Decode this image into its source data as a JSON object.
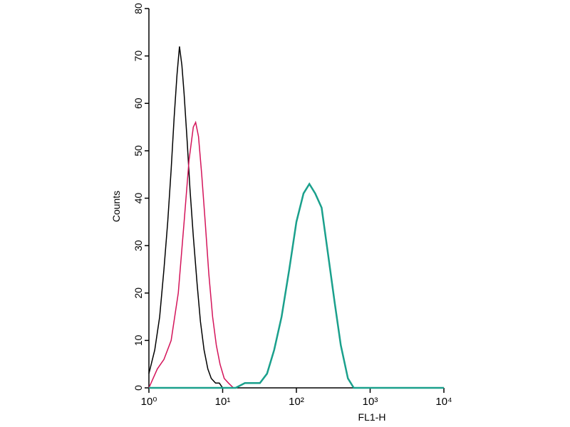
{
  "chart_data": {
    "type": "line",
    "xlabel": "FL1-H",
    "ylabel": "Counts",
    "xscale": "log",
    "xlim": [
      1,
      10000
    ],
    "ylim": [
      0,
      80
    ],
    "xticks": [
      {
        "value": 1,
        "label": "10⁰"
      },
      {
        "value": 10,
        "label": "10¹"
      },
      {
        "value": 100,
        "label": "10²"
      },
      {
        "value": 1000,
        "label": "10³"
      },
      {
        "value": 10000,
        "label": "10⁴"
      }
    ],
    "yticks": [
      0,
      10,
      20,
      30,
      40,
      50,
      60,
      70,
      80
    ],
    "series": [
      {
        "color": "#000000",
        "x": [
          1,
          1.2,
          1.4,
          1.6,
          1.8,
          2.0,
          2.2,
          2.4,
          2.6,
          2.8,
          3.0,
          3.3,
          3.6,
          4.0,
          4.5,
          5,
          5.6,
          6.3,
          7,
          8,
          9,
          10,
          12
        ],
        "values": [
          3,
          8,
          15,
          25,
          35,
          46,
          57,
          66,
          72,
          68,
          62,
          52,
          42,
          32,
          22,
          14,
          8,
          4,
          2,
          1,
          1,
          0,
          0
        ]
      },
      {
        "color": "#d4145a",
        "x": [
          1,
          1.3,
          1.6,
          2,
          2.5,
          3,
          3.5,
          4,
          4.3,
          4.7,
          5.2,
          5.8,
          6.5,
          7.3,
          8.2,
          9.2,
          10.5,
          12,
          14
        ],
        "values": [
          0,
          4,
          6,
          10,
          20,
          35,
          48,
          55,
          56,
          53,
          45,
          35,
          24,
          15,
          9,
          5,
          2,
          1,
          0
        ]
      },
      {
        "color": "#1aa08c",
        "x": [
          1,
          10,
          15,
          20,
          25,
          32,
          40,
          50,
          63,
          80,
          100,
          125,
          150,
          180,
          220,
          270,
          330,
          400,
          500,
          600,
          800,
          10000
        ],
        "values": [
          0,
          0,
          0,
          1,
          1,
          1,
          3,
          8,
          15,
          25,
          35,
          41,
          43,
          41,
          38,
          28,
          18,
          9,
          2,
          0,
          0,
          0
        ]
      }
    ]
  }
}
